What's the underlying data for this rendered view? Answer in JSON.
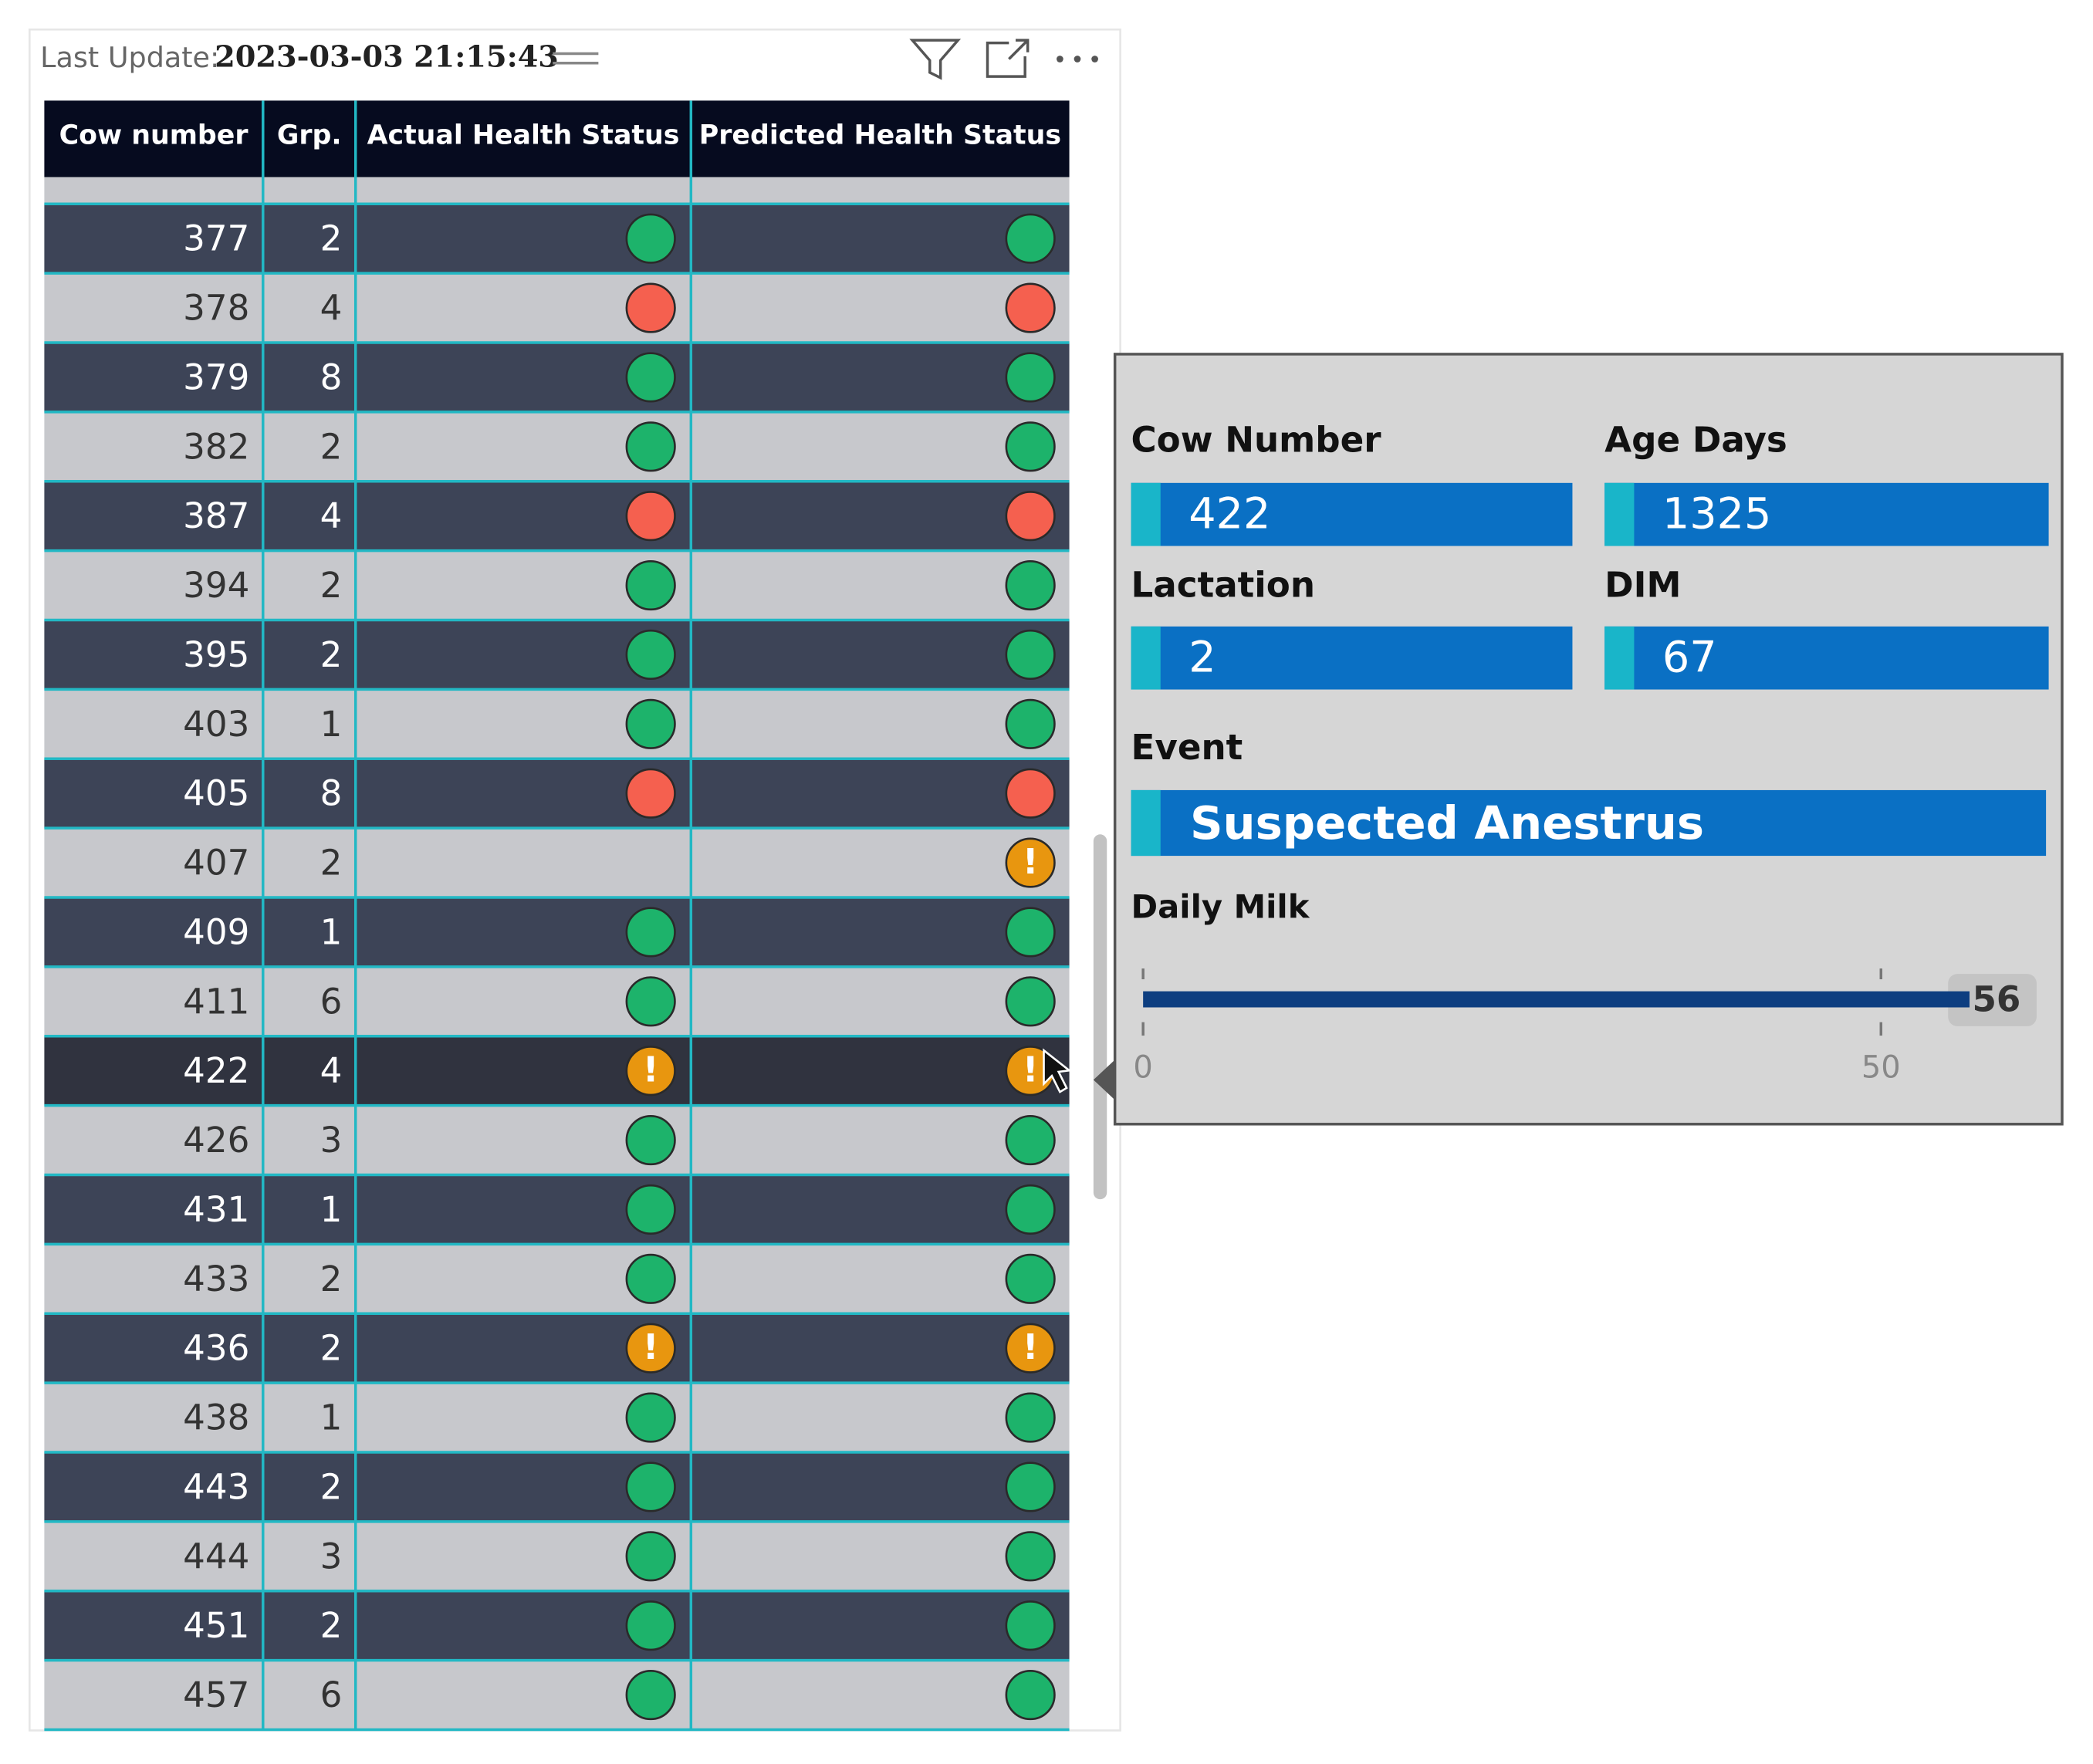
{
  "header": {
    "label": "Last Update:",
    "value": "2023-03-03 21:15:43"
  },
  "table": {
    "columns": [
      "Cow number",
      "Grp.",
      "Actual Health Status",
      "Predicted Health Status"
    ],
    "rows": [
      [
        377,
        2,
        {
          "color": "#1db36b"
        },
        {
          "color": "#1db36b"
        }
      ],
      [
        378,
        4,
        {
          "color": "#f5604f"
        },
        {
          "color": "#f5604f"
        }
      ],
      [
        379,
        8,
        {
          "color": "#1db36b"
        },
        {
          "color": "#1db36b"
        }
      ],
      [
        382,
        2,
        {
          "color": "#1db36b"
        },
        {
          "color": "#1db36b"
        }
      ],
      [
        387,
        4,
        {
          "color": "#f5604f"
        },
        {
          "color": "#f5604f"
        }
      ],
      [
        394,
        2,
        {
          "color": "#1db36b"
        },
        {
          "color": "#1db36b"
        }
      ],
      [
        395,
        2,
        {
          "color": "#1db36b"
        },
        {
          "color": "#1db36b"
        }
      ],
      [
        403,
        1,
        {
          "color": "#1db36b"
        },
        {
          "color": "#1db36b"
        }
      ],
      [
        405,
        8,
        {
          "color": "#f5604f"
        },
        {
          "color": "#f5604f"
        }
      ],
      [
        407,
        2,
        null,
        {
          "color": "#e8960f",
          "symbol": "!"
        }
      ],
      [
        409,
        1,
        {
          "color": "#1db36b"
        },
        {
          "color": "#1db36b"
        }
      ],
      [
        411,
        6,
        {
          "color": "#1db36b"
        },
        {
          "color": "#1db36b"
        }
      ],
      [
        422,
        4,
        {
          "color": "#e8960f",
          "symbol": "!"
        },
        {
          "color": "#e8960f",
          "symbol": "!"
        }
      ],
      [
        426,
        3,
        {
          "color": "#1db36b"
        },
        {
          "color": "#1db36b"
        }
      ],
      [
        431,
        1,
        {
          "color": "#1db36b"
        },
        {
          "color": "#1db36b"
        }
      ],
      [
        433,
        2,
        {
          "color": "#1db36b"
        },
        {
          "color": "#1db36b"
        }
      ],
      [
        436,
        2,
        {
          "color": "#e8960f",
          "symbol": "!"
        },
        {
          "color": "#e8960f",
          "symbol": "!"
        }
      ],
      [
        438,
        1,
        {
          "color": "#1db36b"
        },
        {
          "color": "#1db36b"
        }
      ],
      [
        443,
        2,
        {
          "color": "#1db36b"
        },
        {
          "color": "#1db36b"
        }
      ],
      [
        444,
        3,
        {
          "color": "#1db36b"
        },
        {
          "color": "#1db36b"
        }
      ],
      [
        451,
        2,
        {
          "color": "#1db36b"
        },
        {
          "color": "#1db36b"
        }
      ],
      [
        457,
        6,
        {
          "color": "#1db36b"
        },
        {
          "color": "#1db36b"
        }
      ]
    ]
  },
  "tooltip": {
    "fields": [
      {
        "label": "Cow Number",
        "value": 422
      },
      {
        "label": "Age Days",
        "value": 1325
      },
      {
        "label": "Lactation",
        "value": 2
      },
      {
        "label": "DIM",
        "value": 67
      }
    ],
    "event": {
      "label": "Event",
      "value": "Suspected Anestrus"
    },
    "daily_milk": {
      "label": "Daily Milk",
      "value": 56,
      "xlim": [
        0,
        56
      ],
      "xticks": [
        0,
        50
      ]
    }
  }
}
